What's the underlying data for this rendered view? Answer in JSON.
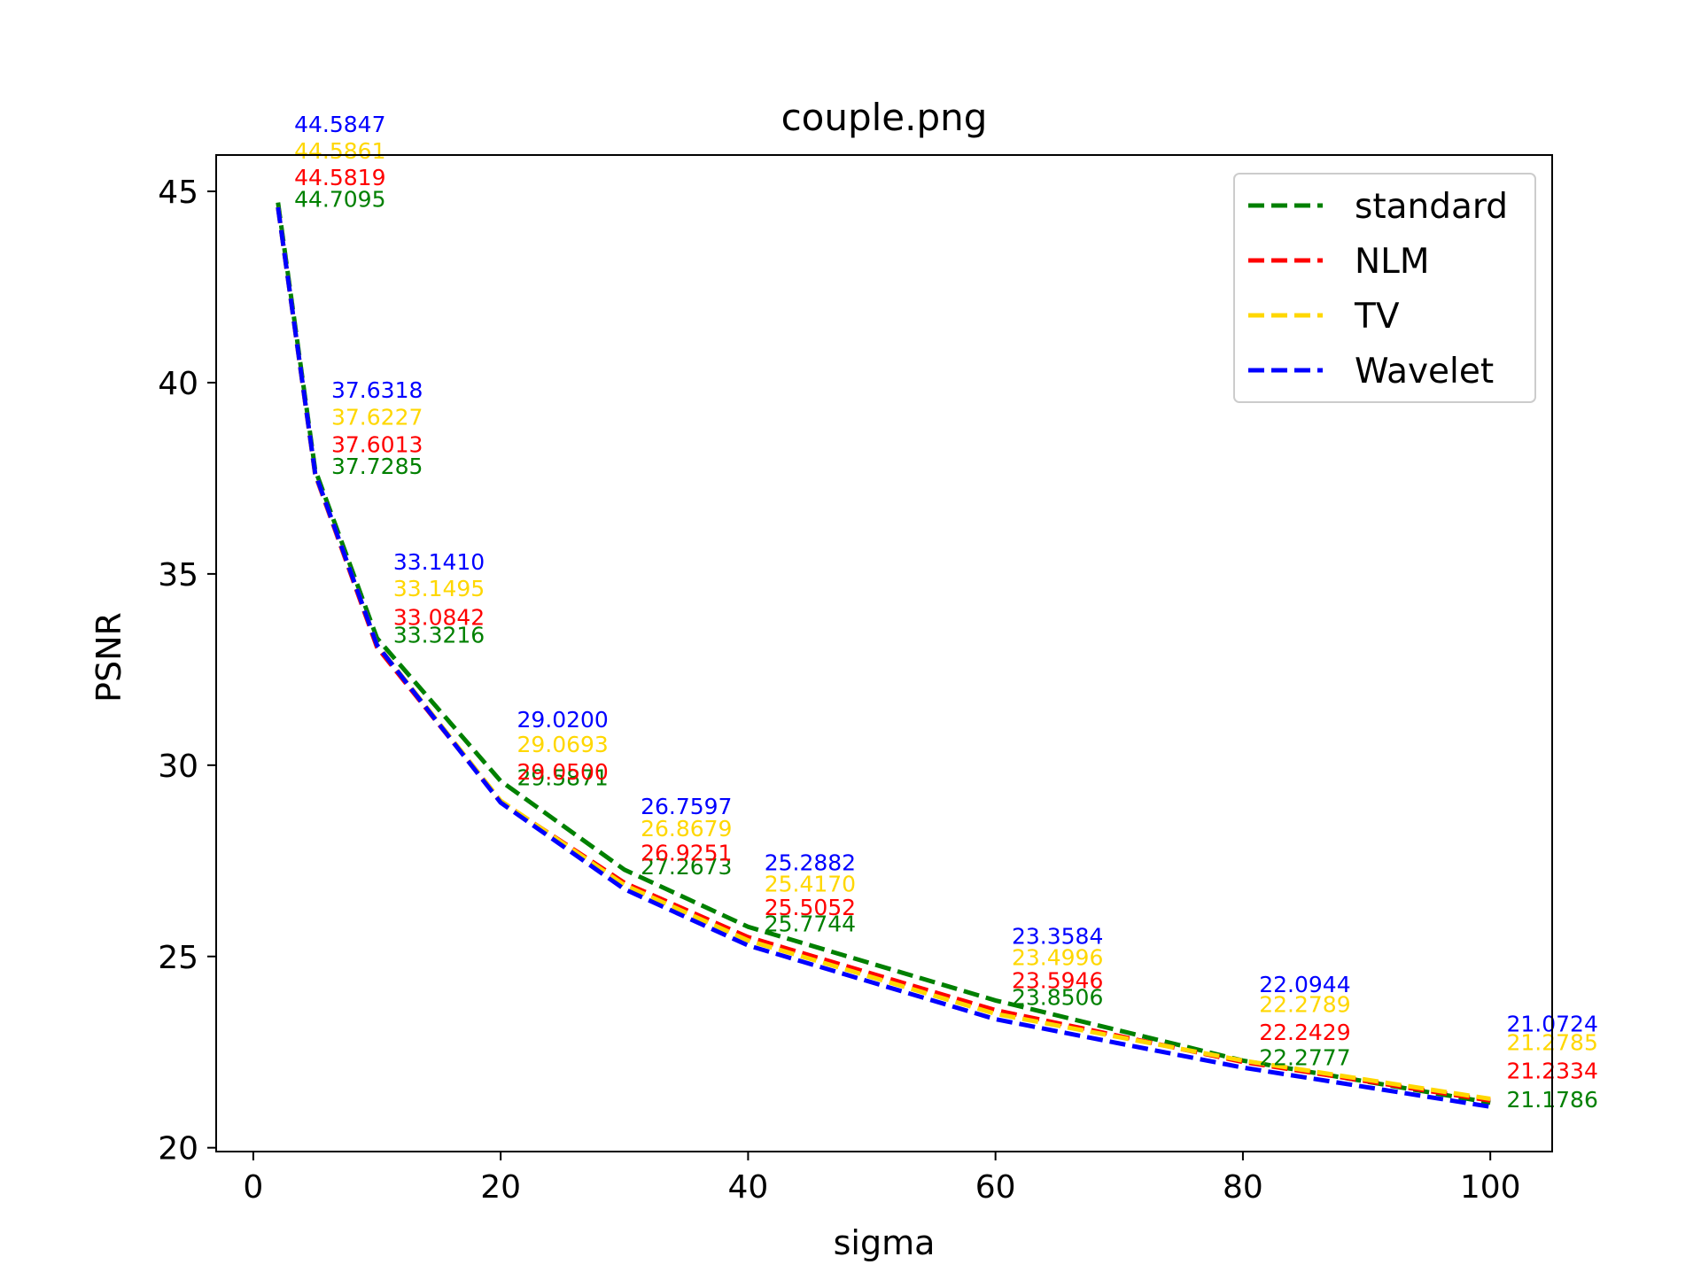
{
  "chart_data": {
    "type": "line",
    "title": "couple.png",
    "xlabel": "sigma",
    "ylabel": "PSNR",
    "x": [
      2,
      5,
      10,
      20,
      30,
      40,
      60,
      80,
      100
    ],
    "xlim": [
      -3,
      105
    ],
    "ylim": [
      19.9,
      45.95
    ],
    "xticks": [
      0,
      20,
      40,
      60,
      80,
      100
    ],
    "yticks": [
      20,
      25,
      30,
      35,
      40,
      45
    ],
    "xtick_labels": [
      "0",
      "20",
      "40",
      "60",
      "80",
      "100"
    ],
    "ytick_labels": [
      "20",
      "25",
      "30",
      "35",
      "40",
      "45"
    ],
    "legend_position": "top-right",
    "grid": false,
    "line_style": "dashed",
    "series": [
      {
        "name": "standard",
        "color": "#008000",
        "values": [
          44.7095,
          37.7285,
          33.3216,
          29.5871,
          27.2673,
          25.7744,
          23.8506,
          22.2777,
          21.1786
        ],
        "labels": [
          "44.7095",
          "37.7285",
          "33.3216",
          "29.5871",
          "27.2673",
          "25.7744",
          "23.8506",
          "22.2777",
          "21.1786"
        ]
      },
      {
        "name": "NLM",
        "color": "#ff0000",
        "values": [
          44.5819,
          37.6013,
          33.0842,
          29.05,
          26.9251,
          25.5052,
          23.5946,
          22.2429,
          21.2334
        ],
        "labels": [
          "44.5819",
          "37.6013",
          "33.0842",
          "29.0500",
          "26.9251",
          "25.5052",
          "23.5946",
          "22.2429",
          "21.2334"
        ]
      },
      {
        "name": "TV",
        "color": "#ffd700",
        "values": [
          44.5861,
          37.6227,
          33.1495,
          29.0693,
          26.8679,
          25.417,
          23.4996,
          22.2789,
          21.2785
        ],
        "labels": [
          "44.5861",
          "37.6227",
          "33.1495",
          "29.0693",
          "26.8679",
          "25.4170",
          "23.4996",
          "22.2789",
          "21.2785"
        ]
      },
      {
        "name": "Wavelet",
        "color": "#0000ff",
        "values": [
          44.5847,
          37.6318,
          33.141,
          29.02,
          26.7597,
          25.2882,
          23.3584,
          22.0944,
          21.0724
        ],
        "labels": [
          "44.5847",
          "37.6318",
          "33.1410",
          "29.0200",
          "26.7597",
          "25.2882",
          "23.3584",
          "22.0944",
          "21.0724"
        ]
      }
    ]
  }
}
